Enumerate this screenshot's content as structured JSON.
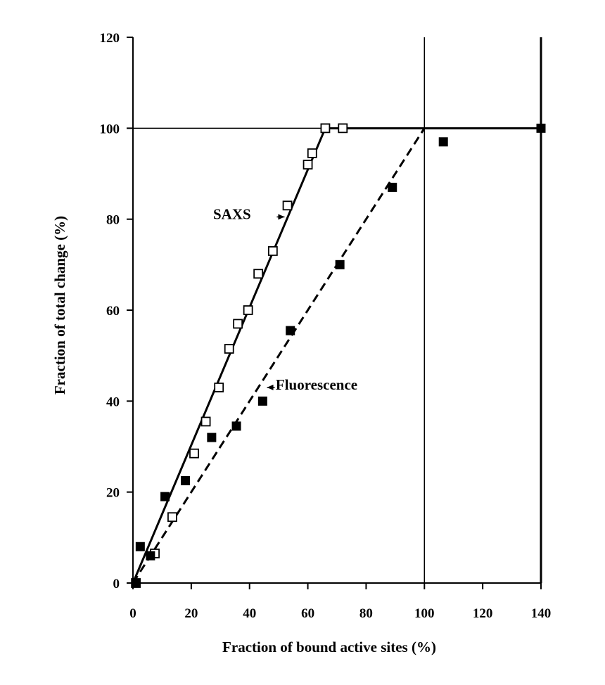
{
  "chart_data": {
    "type": "scatter",
    "title": "",
    "xlabel": "Fraction of bound active sites (%)",
    "ylabel": "Fraction of total change (%)",
    "xlim": [
      0,
      140
    ],
    "ylim": [
      0,
      120
    ],
    "xticks": [
      0,
      20,
      40,
      60,
      80,
      100,
      120,
      140
    ],
    "yticks": [
      0,
      20,
      40,
      60,
      80,
      100,
      120
    ],
    "grid": false,
    "reference_lines": {
      "horizontal_y": 100,
      "vertical_x": 100
    },
    "series": [
      {
        "name": "SAXS",
        "marker": "open-square",
        "color": "#000000",
        "points": [
          [
            1,
            0
          ],
          [
            7.5,
            6.5
          ],
          [
            13.5,
            14.5
          ],
          [
            21,
            28.5
          ],
          [
            25,
            35.5
          ],
          [
            29.5,
            43
          ],
          [
            33,
            51.5
          ],
          [
            36,
            57
          ],
          [
            39.5,
            60
          ],
          [
            43,
            68
          ],
          [
            48,
            73
          ],
          [
            53,
            83
          ],
          [
            60,
            92
          ],
          [
            61.5,
            94.5
          ],
          [
            66,
            100
          ],
          [
            72,
            100
          ]
        ]
      },
      {
        "name": "Fluorescence",
        "marker": "filled-square",
        "color": "#000000",
        "points": [
          [
            1,
            0
          ],
          [
            2.5,
            8
          ],
          [
            6,
            6
          ],
          [
            11,
            19
          ],
          [
            18,
            22.5
          ],
          [
            27,
            32
          ],
          [
            35.5,
            34.5
          ],
          [
            44.5,
            40
          ],
          [
            54,
            55.5
          ],
          [
            71,
            70
          ],
          [
            89,
            87
          ],
          [
            106.5,
            97
          ],
          [
            140,
            100
          ]
        ]
      }
    ],
    "fit_lines": [
      {
        "series": "SAXS",
        "style": "solid",
        "points": [
          [
            0,
            0
          ],
          [
            66,
            100
          ],
          [
            140,
            100
          ]
        ]
      },
      {
        "series": "Fluorescence",
        "style": "dashed",
        "points": [
          [
            0,
            0
          ],
          [
            100,
            100
          ]
        ]
      }
    ],
    "annotations": [
      {
        "text": "SAXS",
        "x": 34,
        "y": 80,
        "arrow_to": [
          52,
          80.5
        ]
      },
      {
        "text": "Fluorescence",
        "x": 63,
        "y": 42.5,
        "arrow_to": [
          46,
          43
        ]
      }
    ]
  }
}
